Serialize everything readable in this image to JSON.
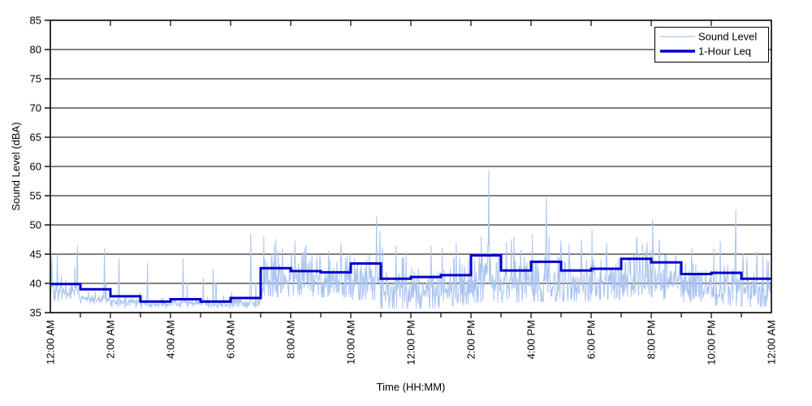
{
  "colors": {
    "background": "#ffffff",
    "trace": "#aac4f0",
    "leq": "#0000cc",
    "axis": "#000000",
    "grid": "#000000",
    "text": "#000000"
  },
  "chart_data": {
    "type": "line",
    "title": "",
    "xlabel": "Time (HH:MM)",
    "ylabel": "Sound Level (dBA)",
    "ylim": [
      35,
      85
    ],
    "xlim_hours": [
      0,
      24
    ],
    "grid": "horizontal-only",
    "y_tick_labels": [
      "35",
      "40",
      "45",
      "50",
      "55",
      "60",
      "65",
      "70",
      "75",
      "80",
      "85"
    ],
    "y_tick_values": [
      35,
      40,
      45,
      50,
      55,
      60,
      65,
      70,
      75,
      80,
      85
    ],
    "x_major_tick_interval_hours": 2,
    "x_minor_tick_interval_hours": 1,
    "x_tick_labels": [
      "12:00 AM",
      "2:00 AM",
      "4:00 AM",
      "6:00 AM",
      "8:00 AM",
      "10:00 AM",
      "12:00 PM",
      "2:00 PM",
      "4:00 PM",
      "6:00 PM",
      "8:00 PM",
      "10:00 PM",
      "12:00 AM"
    ],
    "legend": {
      "position": "top-right",
      "entries": [
        "Sound Level",
        "1-Hour Leq"
      ]
    },
    "series": [
      {
        "name": "Sound Level",
        "style": "thin-noisy-line",
        "color": "#aac4f0",
        "sample_interval": "1-minute (approx.)",
        "hourly_envelope": {
          "floor_dBA": [
            37.6,
            36.8,
            36.2,
            36.0,
            36.2,
            36.0,
            36.2,
            38.3,
            38.3,
            38.2,
            37.8,
            36.3,
            36.3,
            36.8,
            37.3,
            37.3,
            37.5,
            37.5,
            37.8,
            38.3,
            37.8,
            37.3,
            36.8,
            36.6
          ],
          "typical_dBA": [
            38.8,
            37.4,
            36.9,
            36.6,
            36.9,
            36.6,
            37.0,
            41.3,
            41.2,
            41.0,
            41.3,
            39.3,
            39.5,
            39.8,
            41.0,
            40.8,
            41.3,
            40.8,
            41.3,
            42.3,
            41.8,
            40.3,
            40.0,
            39.3
          ]
        },
        "notable_spikes": [
          {
            "time": "00:03",
            "dBA": 44.5
          },
          {
            "time": "00:14",
            "dBA": 45.0
          },
          {
            "time": "00:54",
            "dBA": 46.5
          },
          {
            "time": "01:48",
            "dBA": 46.0
          },
          {
            "time": "02:17",
            "dBA": 44.3
          },
          {
            "time": "03:14",
            "dBA": 43.5
          },
          {
            "time": "04:25",
            "dBA": 44.3
          },
          {
            "time": "05:25",
            "dBA": 42.5
          },
          {
            "time": "06:40",
            "dBA": 48.5
          },
          {
            "time": "07:43",
            "dBA": 46.0
          },
          {
            "time": "08:30",
            "dBA": 46.5
          },
          {
            "time": "09:40",
            "dBA": 47.0
          },
          {
            "time": "10:51",
            "dBA": 51.4
          },
          {
            "time": "11:30",
            "dBA": 46.5
          },
          {
            "time": "12:40",
            "dBA": 46.5
          },
          {
            "time": "13:30",
            "dBA": 47.0
          },
          {
            "time": "14:35",
            "dBA": 59.3
          },
          {
            "time": "15:20",
            "dBA": 47.5
          },
          {
            "time": "16:30",
            "dBA": 54.7
          },
          {
            "time": "17:40",
            "dBA": 47.5
          },
          {
            "time": "18:30",
            "dBA": 47.0
          },
          {
            "time": "19:30",
            "dBA": 48.0
          },
          {
            "time": "20:15",
            "dBA": 47.5
          },
          {
            "time": "21:20",
            "dBA": 46.0
          },
          {
            "time": "22:48",
            "dBA": 52.5
          },
          {
            "time": "23:30",
            "dBA": 45.5
          }
        ]
      },
      {
        "name": "1-Hour Leq",
        "style": "step-line",
        "color": "#0000cc",
        "hour_start_labels": [
          "12 AM",
          "1 AM",
          "2 AM",
          "3 AM",
          "4 AM",
          "5 AM",
          "6 AM",
          "7 AM",
          "8 AM",
          "9 AM",
          "10 AM",
          "11 AM",
          "12 PM",
          "1 PM",
          "2 PM",
          "3 PM",
          "4 PM",
          "5 PM",
          "6 PM",
          "7 PM",
          "8 PM",
          "9 PM",
          "10 PM",
          "11 PM"
        ],
        "values_dBA": [
          39.9,
          39.0,
          37.8,
          36.9,
          37.3,
          36.9,
          37.5,
          42.6,
          42.1,
          41.9,
          43.4,
          40.8,
          41.1,
          41.4,
          44.8,
          42.2,
          43.7,
          42.2,
          42.5,
          44.2,
          43.6,
          41.6,
          41.8,
          40.8
        ]
      }
    ]
  }
}
